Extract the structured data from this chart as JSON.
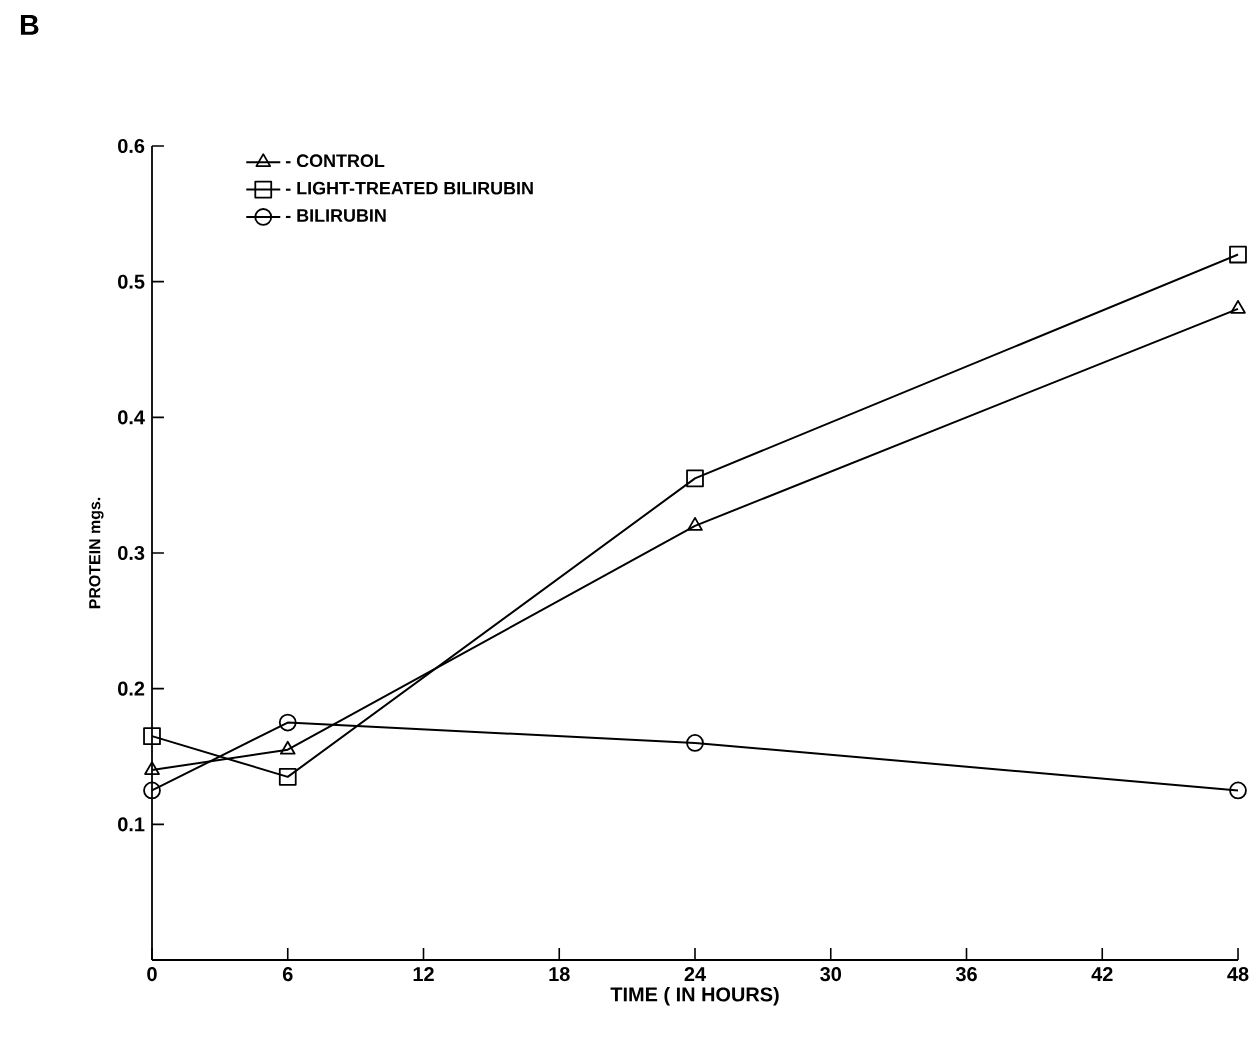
{
  "chart_data": {
    "type": "line",
    "title": "B",
    "xlabel": "TIME ( IN HOURS)",
    "ylabel": "PROTEIN mgs.",
    "x": [
      0,
      6,
      24,
      48
    ],
    "series": [
      {
        "name": "- CONTROL",
        "color": "#000000",
        "marker": "triangle",
        "values": [
          0.14,
          0.155,
          0.32,
          0.48
        ]
      },
      {
        "name": "- LIGHT-TREATED BILIRUBIN",
        "color": "#000000",
        "marker": "square",
        "values": [
          0.165,
          0.135,
          0.355,
          0.52
        ]
      },
      {
        "name": "- BILIRUBIN",
        "color": "#000000",
        "marker": "circle",
        "values": [
          0.125,
          0.175,
          0.16,
          0.125
        ]
      }
    ],
    "xlim": [
      0,
      48
    ],
    "xticks": [
      0,
      6,
      12,
      18,
      24,
      30,
      36,
      42,
      48
    ],
    "ylim": [
      0,
      0.6
    ],
    "yticks": [
      0.1,
      0.2,
      0.3,
      0.4,
      0.5,
      0.6
    ],
    "grid": false,
    "legend": "top left",
    "line_style": "solid"
  }
}
